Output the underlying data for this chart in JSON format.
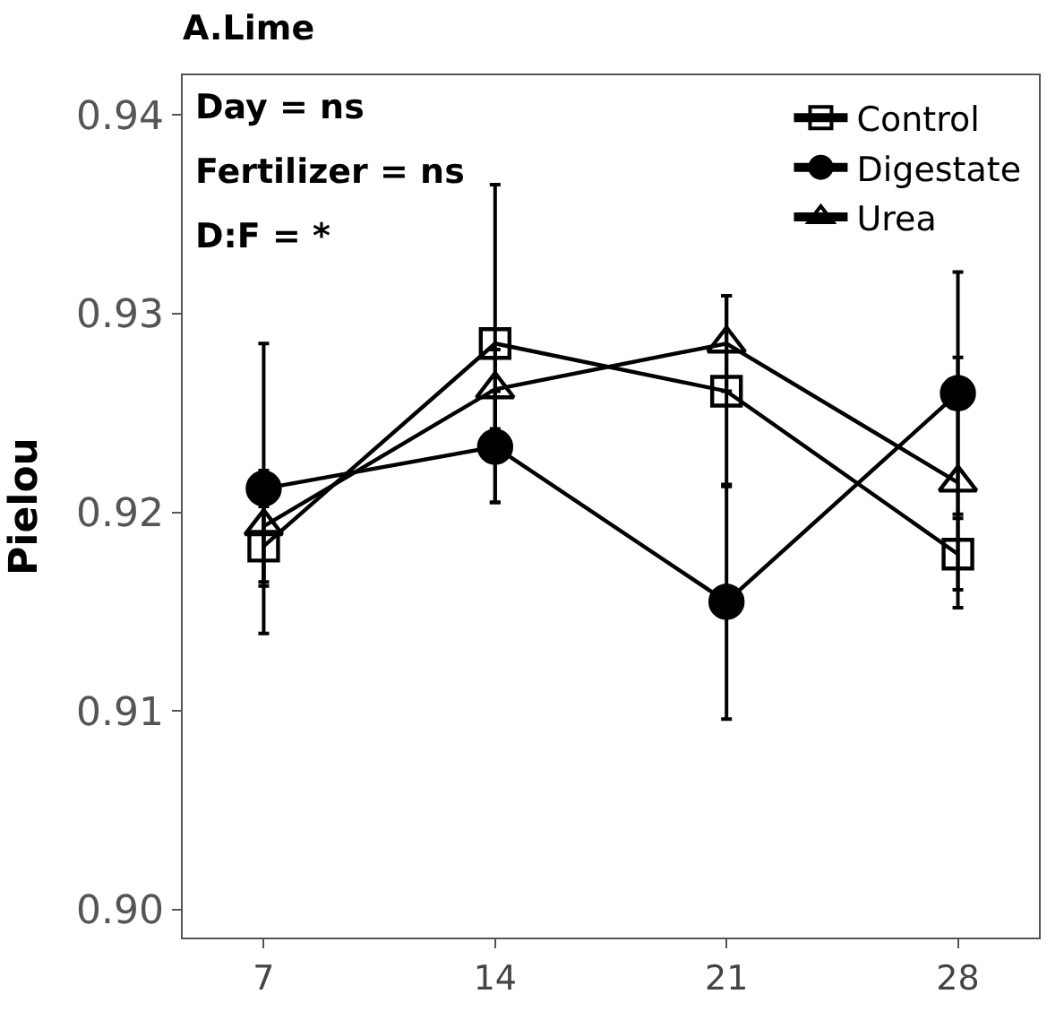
{
  "chart_data": {
    "type": "line",
    "title": "A.Lime",
    "ylabel": "Pielou",
    "categories": [
      "7",
      "14",
      "21",
      "28"
    ],
    "series": [
      {
        "name": "Control",
        "color": "#000000",
        "marker": "square",
        "values": [
          0.9183,
          0.9285,
          0.9261,
          0.9179
        ],
        "errors": [
          0.002,
          0.008,
          0.0048,
          0.0018
        ]
      },
      {
        "name": "Digestate",
        "color": "#000000",
        "marker": "circle",
        "values": [
          0.9212,
          0.9233,
          0.9155,
          0.926
        ],
        "errors": [
          0.0073,
          0.0028,
          0.0059,
          0.0061
        ]
      },
      {
        "name": "Urea",
        "color": "#000000",
        "marker": "triangle",
        "values": [
          0.9193,
          0.9262,
          0.9285,
          0.9215
        ],
        "errors": [
          0.0028,
          0.002,
          0.0024,
          0.0063
        ]
      }
    ],
    "ylim": [
      0.8986,
      0.942
    ],
    "yticks": [
      {
        "value": 0.9,
        "label": "0.90"
      },
      {
        "value": 0.91,
        "label": "0.91"
      },
      {
        "value": 0.92,
        "label": "0.92"
      },
      {
        "value": 0.93,
        "label": "0.93"
      },
      {
        "value": 0.94,
        "label": "0.94"
      }
    ],
    "annotations": [
      "Day = ns",
      "Fertilizer = ns",
      "D:F = *"
    ],
    "legend": "top right",
    "line_style": "solid"
  }
}
